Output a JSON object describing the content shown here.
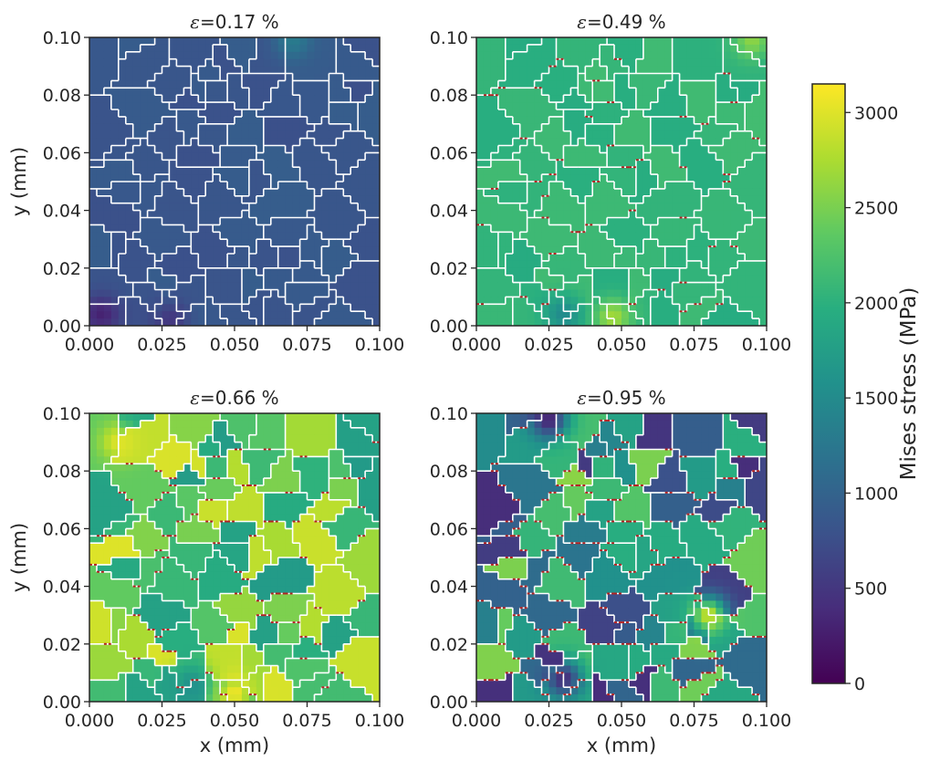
{
  "chart_data": [
    {
      "type": "heatmap",
      "title": "ε=0.17 %",
      "title_symbol": "ε",
      "title_value": "=0.17 %",
      "strain_percent": 0.17,
      "xlabel": "",
      "ylabel": "y (mm)",
      "xlim": [
        0.0,
        0.1
      ],
      "ylim": [
        0.0,
        0.1
      ],
      "xticks": [
        "0.000",
        "0.025",
        "0.050",
        "0.075",
        "0.100"
      ],
      "yticks": [
        "0.00",
        "0.02",
        "0.04",
        "0.06",
        "0.08",
        "0.10"
      ],
      "typical_stress_MPa": 850,
      "variation_MPa": 80,
      "hotspots": [
        {
          "x": 0.004,
          "y": 0.004,
          "stress_MPa": 300
        },
        {
          "x": 0.028,
          "y": 0.002,
          "stress_MPa": 500
        },
        {
          "x": 0.07,
          "y": 0.099,
          "stress_MPa": 1300
        }
      ]
    },
    {
      "type": "heatmap",
      "title": "ε=0.49 %",
      "title_symbol": "ε",
      "title_value": "=0.49 %",
      "strain_percent": 0.49,
      "xlabel": "",
      "ylabel": "",
      "xlim": [
        0.0,
        0.1
      ],
      "ylim": [
        0.0,
        0.1
      ],
      "xticks": [
        "0.000",
        "0.025",
        "0.050",
        "0.075",
        "0.100"
      ],
      "yticks": [
        "0.00",
        "0.02",
        "0.04",
        "0.06",
        "0.08",
        "0.10"
      ],
      "typical_stress_MPa": 2050,
      "variation_MPa": 120,
      "hotspots": [
        {
          "x": 0.03,
          "y": 0.004,
          "stress_MPa": 1500
        },
        {
          "x": 0.047,
          "y": 0.003,
          "stress_MPa": 2700
        },
        {
          "x": 0.095,
          "y": 0.099,
          "stress_MPa": 2600
        }
      ]
    },
    {
      "type": "heatmap",
      "title": "ε=0.66 %",
      "title_symbol": "ε",
      "title_value": "=0.66 %",
      "strain_percent": 0.66,
      "xlabel": "x (mm)",
      "ylabel": "y (mm)",
      "xlim": [
        0.0,
        0.1
      ],
      "ylim": [
        0.0,
        0.1
      ],
      "xticks": [
        "0.000",
        "0.025",
        "0.050",
        "0.075",
        "0.100"
      ],
      "yticks": [
        "0.00",
        "0.02",
        "0.04",
        "0.06",
        "0.08",
        "0.10"
      ],
      "typical_stress_MPa": 2350,
      "variation_MPa": 650,
      "hotspots": [
        {
          "x": 0.05,
          "y": 0.003,
          "stress_MPa": 3100
        },
        {
          "x": 0.035,
          "y": 0.006,
          "stress_MPa": 1600
        },
        {
          "x": 0.01,
          "y": 0.09,
          "stress_MPa": 3000
        }
      ]
    },
    {
      "type": "heatmap",
      "title": "ε=0.95 %",
      "title_symbol": "ε",
      "title_value": "=0.95 %",
      "strain_percent": 0.95,
      "xlabel": "x (mm)",
      "ylabel": "",
      "xlim": [
        0.0,
        0.1
      ],
      "ylim": [
        0.0,
        0.1
      ],
      "xticks": [
        "0.000",
        "0.025",
        "0.050",
        "0.075",
        "0.100"
      ],
      "yticks": [
        "0.00",
        "0.02",
        "0.04",
        "0.06",
        "0.08",
        "0.10"
      ],
      "typical_stress_MPa": 1500,
      "variation_MPa": 1100,
      "hotspots": [
        {
          "x": 0.025,
          "y": 0.098,
          "stress_MPa": 300
        },
        {
          "x": 0.03,
          "y": 0.008,
          "stress_MPa": 400
        },
        {
          "x": 0.08,
          "y": 0.03,
          "stress_MPa": 2900
        }
      ]
    }
  ],
  "colorbar": {
    "label": "Mises stress (MPa)",
    "colormap": "viridis",
    "range": [
      0,
      3150
    ],
    "ticks": [
      "0",
      "500",
      "1000",
      "1500",
      "2000",
      "2500",
      "3000"
    ]
  },
  "colors": {
    "grain_boundary": "#ffffff",
    "crack_boundary": "#b22222",
    "axis": "#262626",
    "colormap_stops": [
      "#440154",
      "#472d7b",
      "#3b528b",
      "#2c728e",
      "#21918c",
      "#28ae80",
      "#5ec962",
      "#addc30",
      "#fde725"
    ]
  }
}
